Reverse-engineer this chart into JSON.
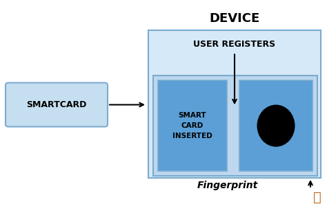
{
  "bg_color": "#ffffff",
  "title_device": "DEVICE",
  "title_fingerprint": "Fingerprint",
  "title_user_registers": "USER REGISTERS",
  "title_smartcard": "SMARTCARD",
  "title_smart_card_inserted": "SMART\nCARD\nINSERTED",
  "box_edge": "#7aabcf",
  "device_facecolor": "#d6e9f8",
  "inner_rect_facecolor": "#bdd7ee",
  "sub_box_facecolor": "#5b9fd6",
  "smartcard_facecolor": "#c5dff0"
}
